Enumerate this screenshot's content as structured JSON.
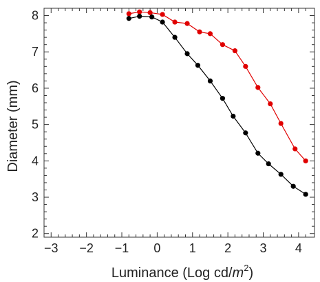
{
  "chart_data": {
    "type": "line",
    "title": "",
    "xlabel": "Luminance (Log cd/",
    "xlabel_unit": "m",
    "xlabel_exp": "2",
    "xlabel_end": ")",
    "ylabel": "Diameter (mm)",
    "xlim": [
      -3.2,
      4.45
    ],
    "ylim": [
      1.9,
      8.2
    ],
    "x_ticks": [
      -3,
      -2,
      -1,
      0,
      1,
      2,
      3,
      4
    ],
    "x_tick_labels": [
      "−3",
      "−2",
      "−1",
      "0",
      "1",
      "2",
      "3",
      "4"
    ],
    "y_ticks": [
      2,
      3,
      4,
      5,
      6,
      7,
      8
    ],
    "y_tick_labels": [
      "2",
      "3",
      "4",
      "5",
      "6",
      "7",
      "8"
    ],
    "grid": false,
    "legend": "none",
    "series": [
      {
        "color": "#e00000",
        "x": [
          -0.8,
          -0.5,
          -0.2,
          0.15,
          0.5,
          0.85,
          1.2,
          1.5,
          1.85,
          2.2,
          2.5,
          2.85,
          3.2,
          3.5,
          3.9,
          4.2
        ],
        "y": [
          8.05,
          8.1,
          8.08,
          8.03,
          7.82,
          7.78,
          7.55,
          7.5,
          7.2,
          7.03,
          6.6,
          6.02,
          5.57,
          5.03,
          4.33,
          4.0
        ]
      },
      {
        "color": "#000000",
        "x": [
          -0.8,
          -0.5,
          -0.15,
          0.15,
          0.5,
          0.85,
          1.15,
          1.5,
          1.85,
          2.15,
          2.5,
          2.85,
          3.15,
          3.5,
          3.85,
          4.2
        ],
        "y": [
          7.92,
          7.98,
          7.96,
          7.82,
          7.4,
          6.95,
          6.63,
          6.2,
          5.72,
          5.23,
          4.77,
          4.21,
          3.92,
          3.63,
          3.3,
          3.08
        ]
      }
    ]
  }
}
